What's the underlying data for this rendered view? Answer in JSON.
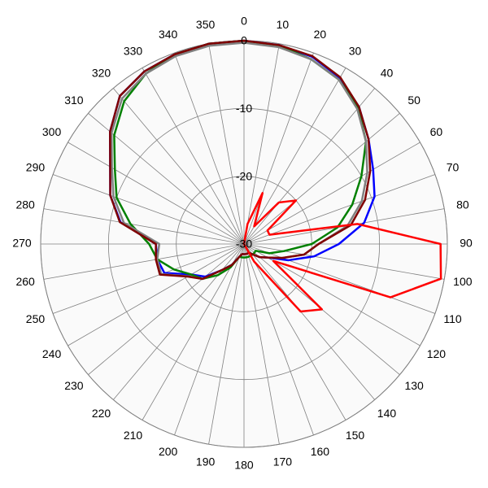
{
  "chart_data": {
    "type": "polar",
    "rlim": [
      -30,
      0
    ],
    "rticks": [
      0,
      -10,
      -20,
      -30
    ],
    "thetaticks": [
      0,
      10,
      20,
      30,
      40,
      50,
      60,
      70,
      80,
      90,
      100,
      110,
      120,
      130,
      140,
      150,
      160,
      170,
      180,
      190,
      200,
      210,
      220,
      230,
      240,
      250,
      260,
      270,
      280,
      290,
      300,
      310,
      320,
      330,
      340,
      350
    ],
    "grid": true,
    "theta": [
      0,
      10,
      20,
      30,
      40,
      50,
      60,
      70,
      80,
      90,
      100,
      110,
      120,
      130,
      140,
      150,
      160,
      170,
      180,
      190,
      200,
      210,
      220,
      230,
      240,
      250,
      260,
      270,
      280,
      290,
      300,
      310,
      320,
      330,
      340,
      350
    ],
    "series": [
      {
        "color": "#0000ff",
        "values": [
          0,
          -0.2,
          -0.6,
          -1.7,
          -3.6,
          -6,
          -8,
          -9.5,
          -12,
          -16,
          -19.5,
          -23,
          -26,
          -27,
          -28,
          -28.5,
          -28.5,
          -28.5,
          -28.5,
          -28.5,
          -28,
          -26.5,
          -25,
          -22.5,
          -21,
          -17.5,
          -17,
          -17,
          -11.5,
          -9,
          -7.2,
          -4.2,
          -1.5,
          -0.6,
          -0.2,
          0
        ]
      },
      {
        "color": "#008000",
        "values": [
          0,
          -0.3,
          -1,
          -2,
          -3.8,
          -6.5,
          -10,
          -13,
          -16,
          -20,
          -24,
          -26,
          -28,
          -28,
          -28,
          -28,
          -28,
          -28,
          -28,
          -28,
          -28,
          -26,
          -24,
          -22,
          -21,
          -19,
          -17,
          -16,
          -13,
          -10,
          -8,
          -5,
          -2.5,
          -1,
          -0.2,
          0
        ]
      },
      {
        "color": "#808080",
        "values": [
          -0.3,
          -0.5,
          -1,
          -2,
          -4,
          -6.5,
          -9,
          -11.5,
          -14.5,
          -19,
          -21,
          -24,
          -26,
          -27,
          -28,
          -28.5,
          -28.5,
          -28.5,
          -28.5,
          -28.5,
          -28,
          -26.5,
          -25,
          -22,
          -20.5,
          -17,
          -17,
          -17.5,
          -12,
          -9.5,
          -7.5,
          -4.5,
          -2,
          -1,
          -0.5,
          -0.3
        ]
      },
      {
        "color": "#800000",
        "values": [
          0,
          -0.2,
          -0.5,
          -1.6,
          -3.6,
          -6,
          -8.5,
          -11,
          -14,
          -19,
          -21,
          -24,
          -26,
          -27,
          -28,
          -28.5,
          -28.5,
          -28.5,
          -28.5,
          -28.5,
          -28,
          -26.4,
          -25,
          -22,
          -20.4,
          -16.8,
          -16.8,
          -17,
          -11.4,
          -9,
          -7.2,
          -4.2,
          -1.5,
          -0.6,
          -0.2,
          0
        ]
      },
      {
        "color": "#ff0000",
        "values": [
          -30,
          -27,
          -22,
          -27,
          -22,
          -20,
          -26,
          -26,
          -13,
          -1,
          -0.5,
          -7,
          -25,
          -15,
          -17,
          -27,
          -30,
          -30,
          -30,
          -30,
          -30,
          -30,
          -30,
          -30,
          -30,
          -30,
          -30,
          -30,
          -30,
          -30,
          -30,
          -30,
          -30,
          -30,
          -30,
          -30
        ]
      }
    ]
  }
}
